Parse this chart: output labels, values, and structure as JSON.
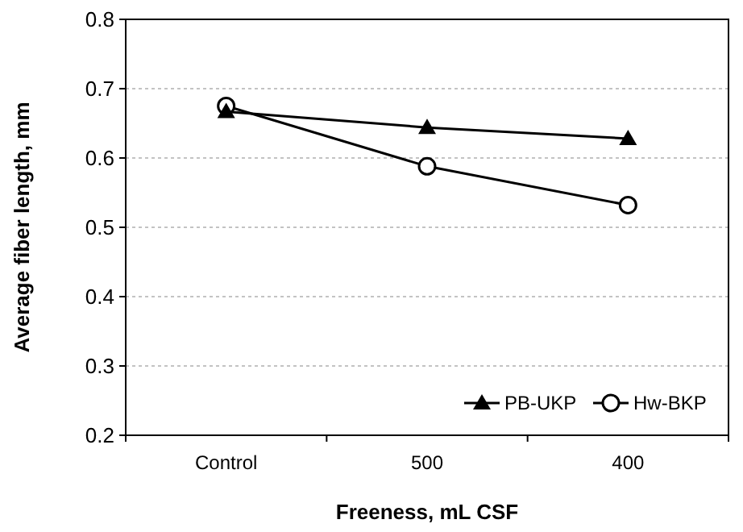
{
  "chart_data": {
    "type": "line",
    "xlabel": "Freeness, mL CSF",
    "ylabel": "Average fiber length, mm",
    "categories": [
      "Control",
      "500",
      "400"
    ],
    "series": [
      {
        "name": "PB-UKP",
        "color": "#000000",
        "marker": "triangle",
        "values": [
          0.667,
          0.644,
          0.628
        ]
      },
      {
        "name": "Hw-BKP",
        "color": "#000000",
        "marker": "circle",
        "values": [
          0.675,
          0.588,
          0.532
        ]
      }
    ],
    "ylim": [
      0.2,
      0.8
    ],
    "yticks": [
      0.2,
      0.3,
      0.4,
      0.5,
      0.6,
      0.7,
      0.8
    ],
    "grid": "y",
    "legend": "bottom right"
  }
}
